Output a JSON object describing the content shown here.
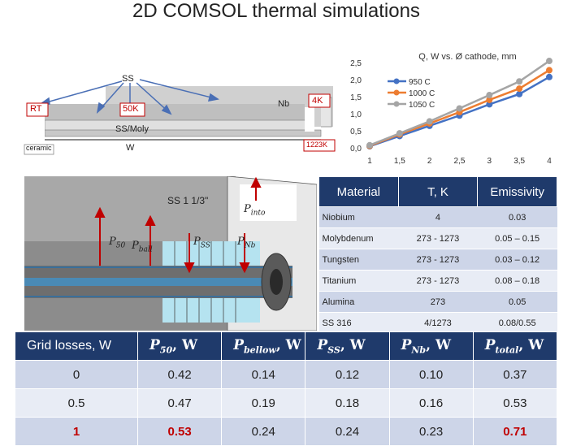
{
  "title": "2D COMSOL thermal simulations",
  "schematic": {
    "ss": "SS",
    "rt": "RT",
    "k50": "50K",
    "nb": "Nb",
    "k4": "4K",
    "ssmoly": "SS/Moly",
    "ceramic": "ceramic",
    "w": "W",
    "k1223": "1223K"
  },
  "render": {
    "ss_label": "SS 1 1/3\"",
    "p_into": "P",
    "p_into_sub": "into",
    "p50": "P",
    "p50_sub": "50",
    "pball": "P",
    "pball_sub": "ball",
    "pss": "P",
    "pss_sub": "SS",
    "pnb": "P",
    "pnb_sub": "Nb"
  },
  "chart_data": {
    "type": "line",
    "title": "Q, W vs. Ø cathode, mm",
    "x": [
      1,
      1.5,
      2,
      2.5,
      3,
      3.5,
      4
    ],
    "xticks": [
      "1",
      "1,5",
      "2",
      "2,5",
      "3",
      "3,5",
      "4"
    ],
    "yticks": [
      "0,0",
      "0,5",
      "1,0",
      "1,5",
      "2,0",
      "2,5"
    ],
    "ylim": [
      0,
      2.5
    ],
    "legend_position": "top-left",
    "series": [
      {
        "name": "950 C",
        "color": "#4472c4",
        "values": [
          0.07,
          0.37,
          0.67,
          0.97,
          1.3,
          1.6,
          2.1
        ]
      },
      {
        "name": "1000 C",
        "color": "#ed7d31",
        "values": [
          0.08,
          0.42,
          0.74,
          1.07,
          1.43,
          1.76,
          2.3
        ]
      },
      {
        "name": "1050 C",
        "color": "#a5a5a5",
        "values": [
          0.1,
          0.45,
          0.8,
          1.18,
          1.57,
          1.97,
          2.57
        ]
      }
    ]
  },
  "materials": {
    "headers": [
      "Material",
      "T, K",
      "Emissivity"
    ],
    "rows": [
      [
        "Niobium",
        "4",
        "0.03"
      ],
      [
        "Molybdenum",
        "273 - 1273",
        "0.05 – 0.15"
      ],
      [
        "Tungsten",
        "273 - 1273",
        "0.03 – 0.12"
      ],
      [
        "Titanium",
        "273 - 1273",
        "0.08 – 0.18"
      ],
      [
        "Alumina",
        "273",
        "0.05"
      ],
      [
        "SS 316",
        "4/1273",
        "0.08/0.55"
      ]
    ]
  },
  "grid_losses": {
    "headers": [
      "Grid losses, W",
      "P50, W",
      "Pbellow, W",
      "PSS, W",
      "PNb, W",
      "Ptotal, W"
    ],
    "header_parts": [
      {
        "main": "",
        "sub": "",
        "unit": ""
      },
      {
        "main": "P",
        "sub": "50",
        "unit": ", W"
      },
      {
        "main": "P",
        "sub": "bellow",
        "unit": ", W"
      },
      {
        "main": "P",
        "sub": "SS",
        "unit": ", W"
      },
      {
        "main": "P",
        "sub": "Nb",
        "unit": ", W"
      },
      {
        "main": "P",
        "sub": "total",
        "unit": ", W"
      }
    ],
    "rows": [
      [
        "0",
        "0.42",
        "0.14",
        "0.12",
        "0.10",
        "0.37"
      ],
      [
        "0.5",
        "0.47",
        "0.19",
        "0.18",
        "0.16",
        "0.53"
      ],
      [
        "1",
        "0.53",
        "0.24",
        "0.24",
        "0.23",
        "0.71"
      ]
    ],
    "highlight_color": "#c00000"
  }
}
